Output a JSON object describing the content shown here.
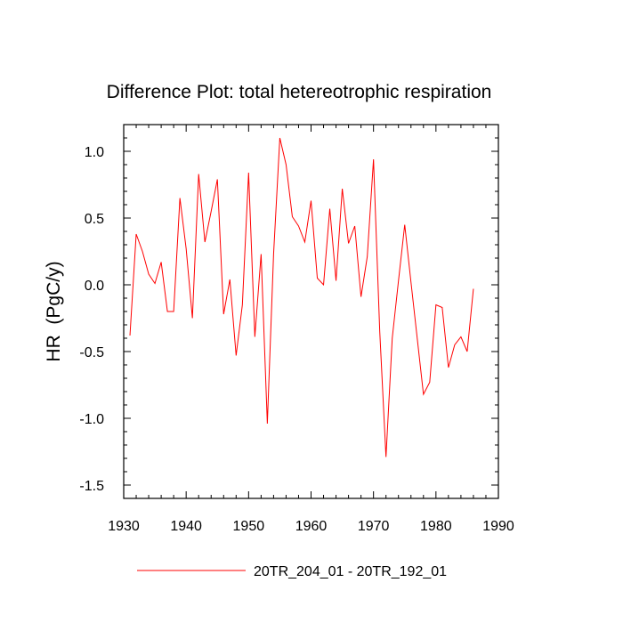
{
  "chart_data": {
    "type": "line",
    "title": "Difference Plot: total hetereotrophic respiration",
    "xlabel": "",
    "ylabel": "HR  (PgC/y)",
    "xlim": [
      1930,
      1990
    ],
    "ylim": [
      -1.6,
      1.2
    ],
    "x_ticks": [
      1930,
      1940,
      1950,
      1960,
      1970,
      1980,
      1990
    ],
    "x_tick_labels": [
      "1930",
      "1940",
      "1950",
      "1960",
      "1970",
      "1980",
      "1990"
    ],
    "y_ticks": [
      -1.5,
      -1.0,
      -0.5,
      0.0,
      0.5,
      1.0
    ],
    "y_tick_labels": [
      "-1.5",
      "-1.0",
      "-0.5",
      "0.0",
      "0.5",
      "1.0"
    ],
    "grid": false,
    "legend_position": "bottom-center",
    "series": [
      {
        "name": "20TR_204_01 - 20TR_192_01",
        "color": "#ff0000",
        "x": [
          1931,
          1932,
          1933,
          1934,
          1935,
          1936,
          1937,
          1938,
          1939,
          1940,
          1941,
          1942,
          1943,
          1944,
          1945,
          1946,
          1947,
          1948,
          1949,
          1950,
          1951,
          1952,
          1953,
          1954,
          1955,
          1956,
          1957,
          1958,
          1959,
          1960,
          1961,
          1962,
          1963,
          1964,
          1965,
          1966,
          1967,
          1968,
          1969,
          1970,
          1971,
          1972,
          1973,
          1974,
          1975,
          1976,
          1977,
          1978,
          1979,
          1980,
          1981,
          1982,
          1983,
          1984,
          1985,
          1986
        ],
        "values": [
          -0.38,
          0.38,
          0.25,
          0.08,
          0.01,
          0.17,
          -0.2,
          -0.2,
          0.65,
          0.27,
          -0.25,
          0.83,
          0.32,
          0.55,
          0.79,
          -0.22,
          0.04,
          -0.53,
          -0.15,
          0.84,
          -0.39,
          0.23,
          -1.04,
          0.23,
          1.1,
          0.9,
          0.51,
          0.44,
          0.32,
          0.63,
          0.05,
          0.0,
          0.57,
          0.03,
          0.72,
          0.31,
          0.44,
          -0.09,
          0.21,
          0.94,
          -0.35,
          -1.29,
          -0.4,
          0.03,
          0.45,
          0.02,
          -0.4,
          -0.82,
          -0.73,
          -0.15,
          -0.17,
          -0.62,
          -0.45,
          -0.39,
          -0.5,
          -0.03
        ]
      }
    ]
  }
}
